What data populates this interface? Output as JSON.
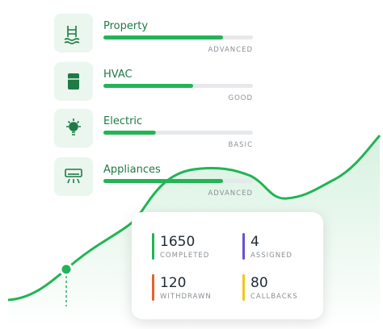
{
  "skills": [
    {
      "label": "Property",
      "level": "ADVANCED",
      "progress": 80
    },
    {
      "label": "HVAC",
      "level": "GOOD",
      "progress": 60
    },
    {
      "label": "Electric",
      "level": "BASIC",
      "progress": 35
    },
    {
      "label": "Appliances",
      "level": "ADVANCED",
      "progress": 80
    }
  ],
  "stats": [
    {
      "value": 1650,
      "label": "COMPLETED",
      "color": "#22b455"
    },
    {
      "value": 4,
      "label": "ASSIGNED",
      "color": "#6b4fd6"
    },
    {
      "value": 120,
      "label": "WITHDRAWN",
      "color": "#e8622c"
    },
    {
      "value": 80,
      "label": "CALLBACKS",
      "color": "#f5c518"
    }
  ]
}
